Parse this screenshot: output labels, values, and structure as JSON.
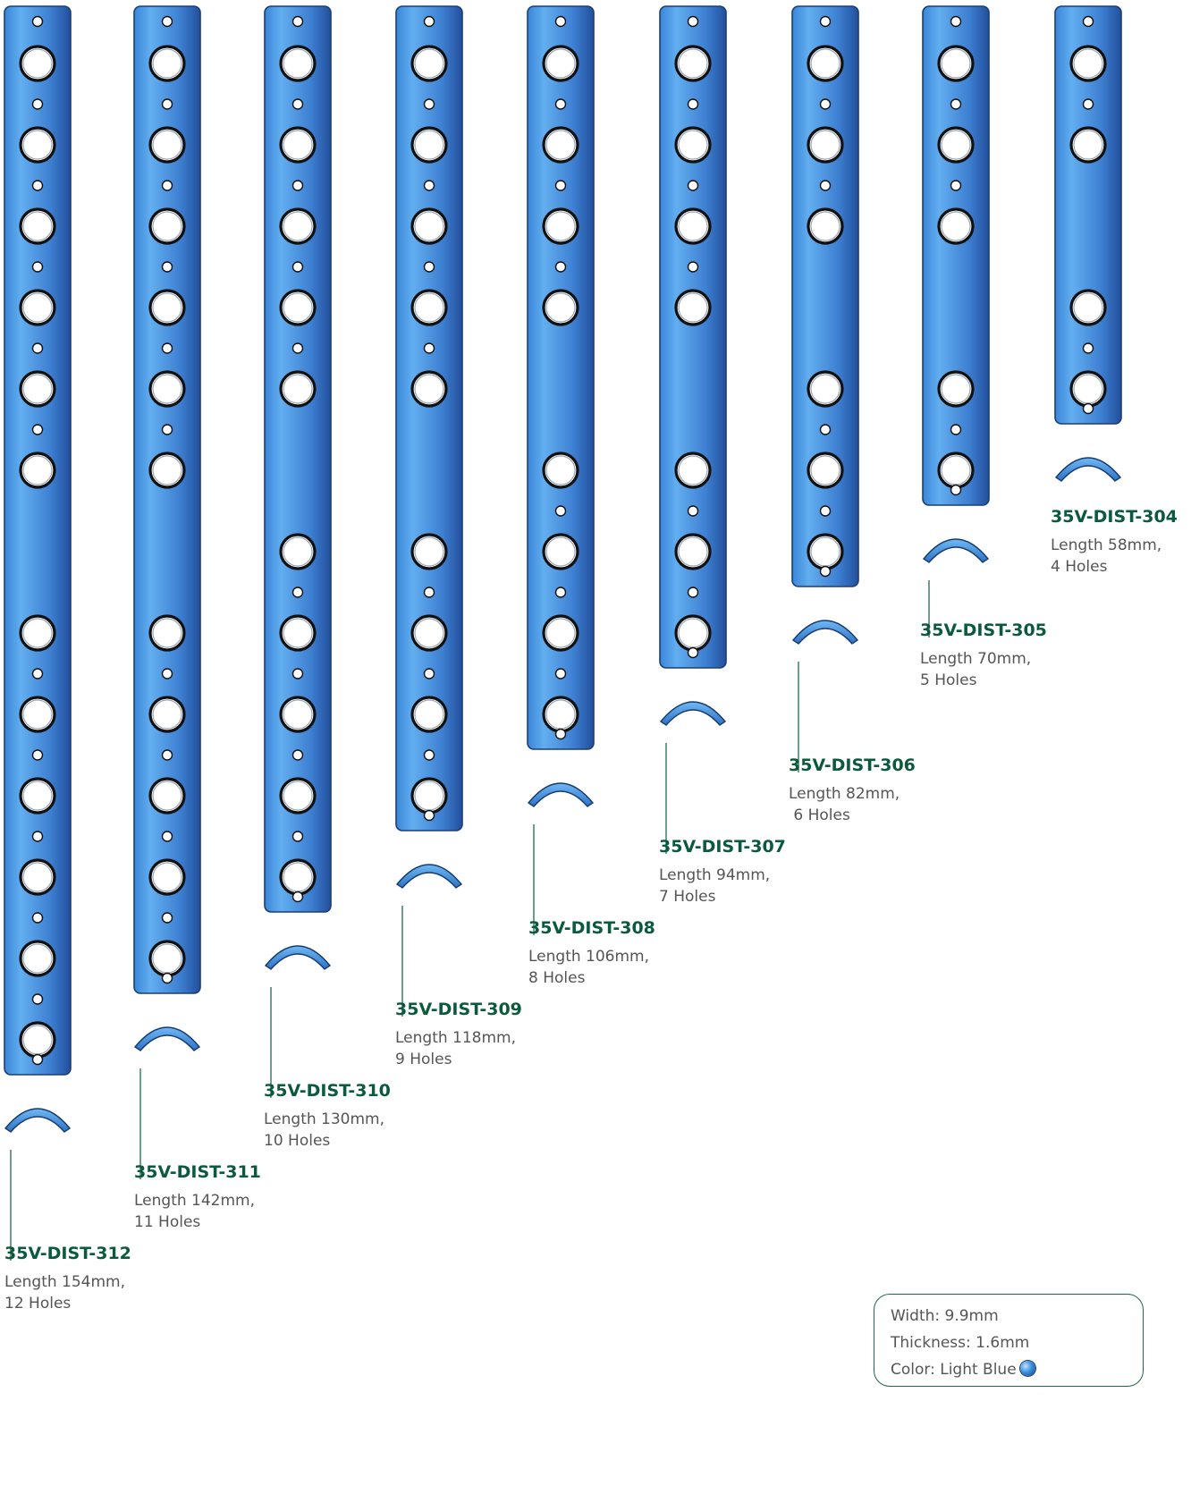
{
  "plates": [
    {
      "code": "35V-DIST-304",
      "desc": "Length 58mm,\n4 Holes",
      "holes": 4,
      "length_mm": 58
    },
    {
      "code": "35V-DIST-305",
      "desc": "Length 70mm,\n5 Holes",
      "holes": 5,
      "length_mm": 70
    },
    {
      "code": "35V-DIST-306",
      "desc": "Length 82mm,\n 6 Holes",
      "holes": 6,
      "length_mm": 82
    },
    {
      "code": "35V-DIST-307",
      "desc": "Length 94mm,\n7 Holes",
      "holes": 7,
      "length_mm": 94
    },
    {
      "code": "35V-DIST-308",
      "desc": "Length 106mm,\n8 Holes",
      "holes": 8,
      "length_mm": 106
    },
    {
      "code": "35V-DIST-309",
      "desc": "Length 118mm,\n9 Holes",
      "holes": 9,
      "length_mm": 118
    },
    {
      "code": "35V-DIST-310",
      "desc": "Length 130mm,\n10 Holes",
      "holes": 10,
      "length_mm": 130
    },
    {
      "code": "35V-DIST-311",
      "desc": "Length 142mm,\n11 Holes",
      "holes": 11,
      "length_mm": 142
    },
    {
      "code": "35V-DIST-312",
      "desc": "Length 154mm,\n12 Holes",
      "holes": 12,
      "length_mm": 154
    }
  ],
  "specs": {
    "width": "Width: 9.9mm",
    "thickness": "Thickness: 1.6mm",
    "color": "Color: Light Blue"
  },
  "colors": {
    "plate_light": "#5aa6ea",
    "plate_dark": "#2a66bd",
    "label_green": "#0b5a3e",
    "leader_green": "#1f6a4a"
  }
}
